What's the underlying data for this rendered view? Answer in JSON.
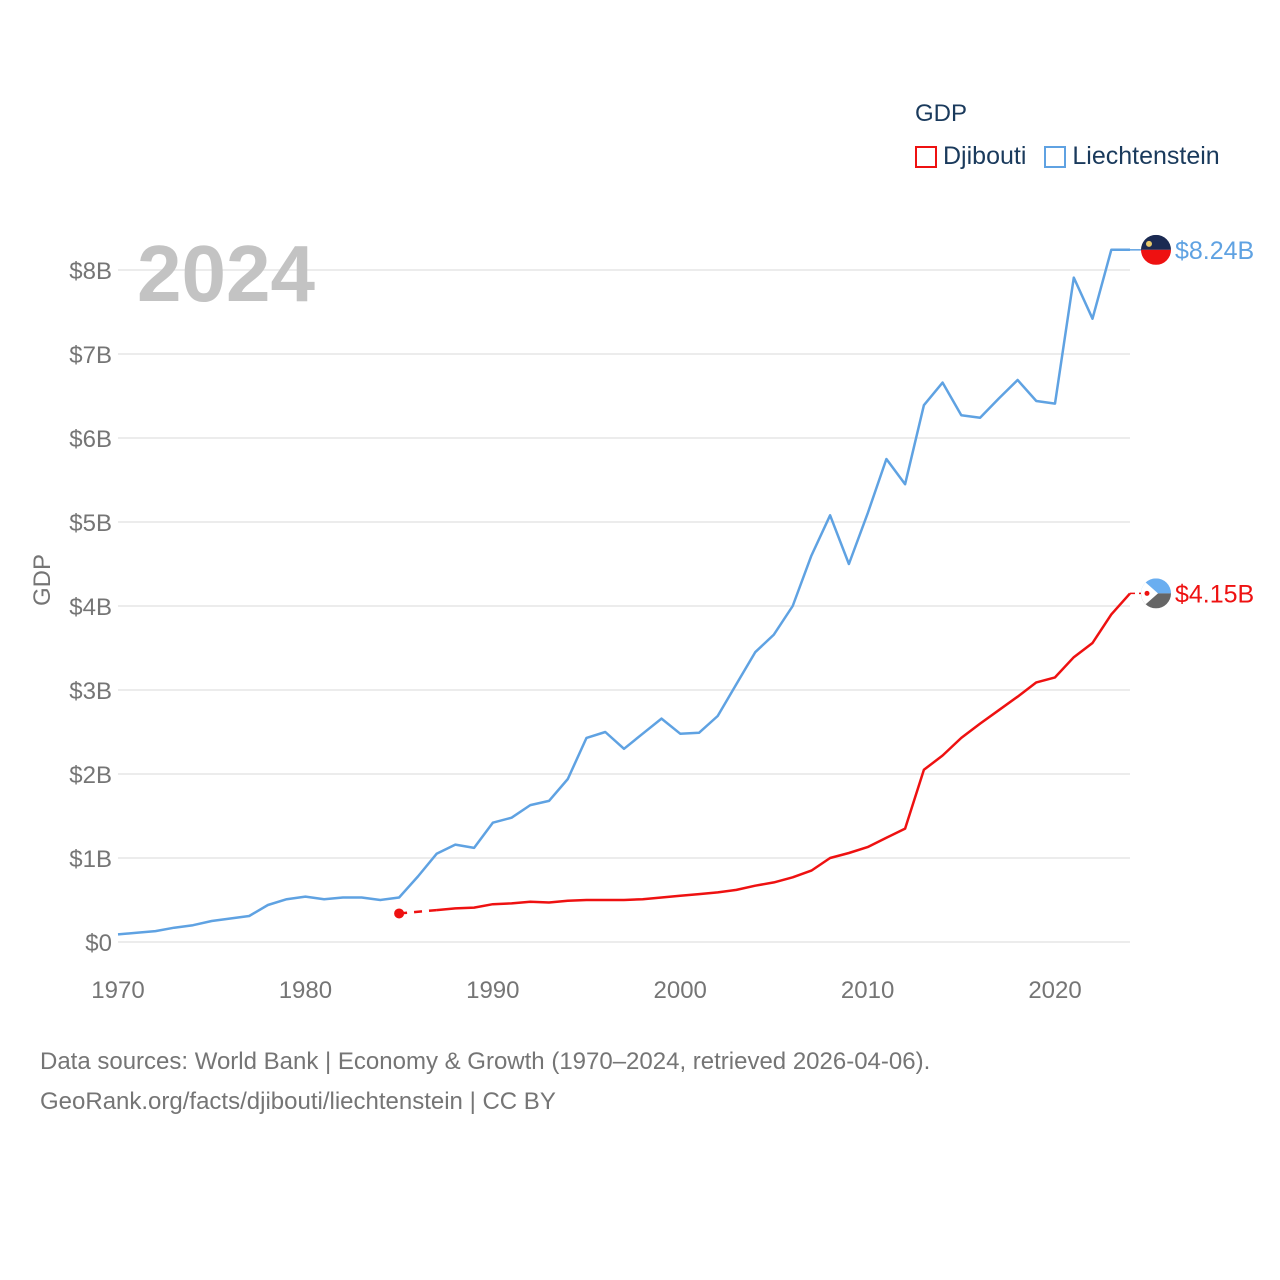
{
  "legend": {
    "title": "GDP",
    "items": [
      {
        "label": "Djibouti",
        "color": "#ee1111"
      },
      {
        "label": "Liechtenstein",
        "color": "#5fa2e2"
      }
    ]
  },
  "year_label": "2024",
  "source": {
    "line1": "Data sources: World Bank | Economy & Growth (1970–2024, retrieved 2026-04-06).",
    "line2": "GeoRank.org/facts/djibouti/liechtenstein | CC BY"
  },
  "chart_data": {
    "type": "line",
    "title": "",
    "xlabel": "",
    "ylabel": "GDP",
    "xlim": [
      1970,
      2024
    ],
    "ylim": [
      0,
      8.5
    ],
    "x_ticks": [
      1970,
      1980,
      1990,
      2000,
      2010,
      2020
    ],
    "y_ticks": [
      0,
      1,
      2,
      3,
      4,
      5,
      6,
      7,
      8
    ],
    "y_tick_labels": [
      "$0",
      "$1B",
      "$2B",
      "$3B",
      "$4B",
      "$5B",
      "$6B",
      "$7B",
      "$8B"
    ],
    "grid": true,
    "series": [
      {
        "name": "Liechtenstein",
        "color": "#5fa2e2",
        "end_label": "$8.24B",
        "x": [
          1970,
          1971,
          1972,
          1973,
          1974,
          1975,
          1976,
          1977,
          1978,
          1979,
          1980,
          1981,
          1982,
          1983,
          1984,
          1985,
          1986,
          1987,
          1988,
          1989,
          1990,
          1991,
          1992,
          1993,
          1994,
          1995,
          1996,
          1997,
          1998,
          1999,
          2000,
          2001,
          2002,
          2003,
          2004,
          2005,
          2006,
          2007,
          2008,
          2009,
          2010,
          2011,
          2012,
          2013,
          2014,
          2015,
          2016,
          2017,
          2018,
          2019,
          2020,
          2021,
          2022,
          2023,
          2024
        ],
        "values": [
          0.09,
          0.11,
          0.13,
          0.17,
          0.2,
          0.25,
          0.28,
          0.31,
          0.44,
          0.51,
          0.54,
          0.51,
          0.53,
          0.53,
          0.5,
          0.53,
          0.78,
          1.05,
          1.16,
          1.12,
          1.42,
          1.48,
          1.63,
          1.68,
          1.94,
          2.43,
          2.5,
          2.3,
          2.48,
          2.66,
          2.48,
          2.49,
          2.69,
          3.07,
          3.45,
          3.66,
          4.0,
          4.6,
          5.08,
          4.5,
          5.1,
          5.75,
          5.45,
          6.39,
          6.66,
          6.27,
          6.24,
          6.47,
          6.69,
          6.44,
          6.41,
          7.91,
          7.42,
          8.24,
          8.24
        ]
      },
      {
        "name": "Djibouti",
        "color": "#ee1111",
        "end_label": "$4.15B",
        "x": [
          1985,
          1986,
          1987,
          1988,
          1989,
          1990,
          1991,
          1992,
          1993,
          1994,
          1995,
          1996,
          1997,
          1998,
          1999,
          2000,
          2001,
          2002,
          2003,
          2004,
          2005,
          2006,
          2007,
          2008,
          2009,
          2010,
          2011,
          2012,
          2013,
          2014,
          2015,
          2016,
          2017,
          2018,
          2019,
          2020,
          2021,
          2022,
          2023,
          2024
        ],
        "values": [
          0.34,
          0.36,
          0.38,
          0.4,
          0.41,
          0.45,
          0.46,
          0.48,
          0.47,
          0.49,
          0.5,
          0.5,
          0.5,
          0.51,
          0.53,
          0.55,
          0.57,
          0.59,
          0.62,
          0.67,
          0.71,
          0.77,
          0.85,
          1.0,
          1.06,
          1.13,
          1.24,
          1.35,
          2.05,
          2.22,
          2.43,
          2.6,
          2.76,
          2.92,
          3.09,
          3.15,
          3.39,
          3.56,
          3.9,
          4.15
        ]
      }
    ]
  }
}
